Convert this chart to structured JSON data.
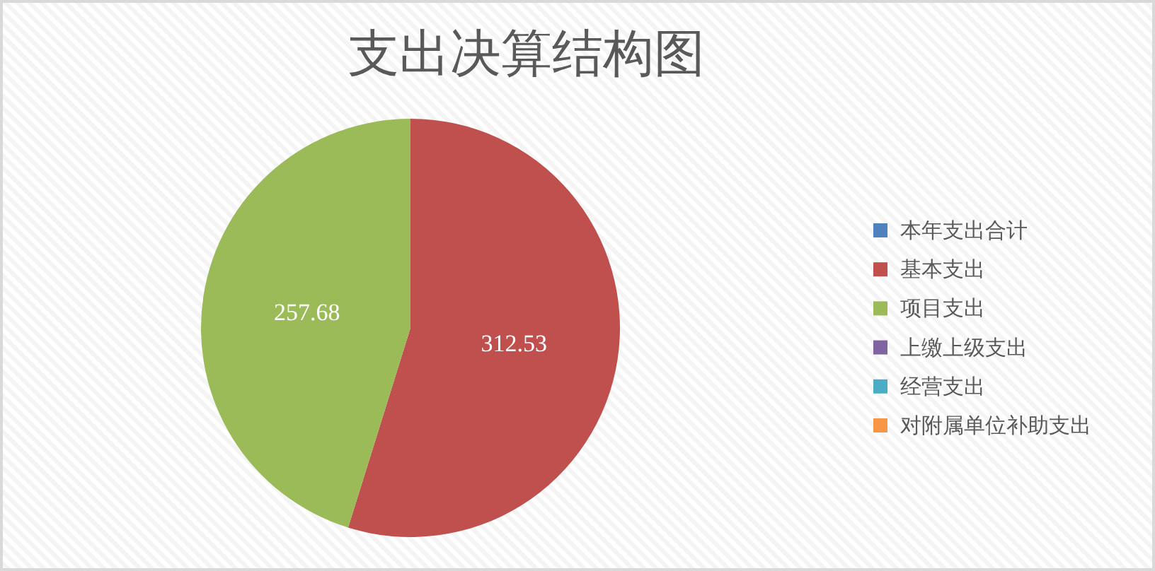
{
  "chart_data": {
    "type": "pie",
    "title": "支出决算结构图",
    "categories": [
      "本年支出合计",
      "基本支出",
      "项目支出",
      "上缴上级支出",
      "经营支出",
      "对附属单位补助支出"
    ],
    "values": [
      0,
      312.53,
      257.68,
      0,
      0,
      0
    ],
    "colors": [
      "#4f81bd",
      "#c0504d",
      "#9bbb59",
      "#8064a2",
      "#4bacc6",
      "#f79646"
    ],
    "value_labels": [
      null,
      "312.53",
      "257.68",
      null,
      null,
      null
    ],
    "legend": "right"
  }
}
